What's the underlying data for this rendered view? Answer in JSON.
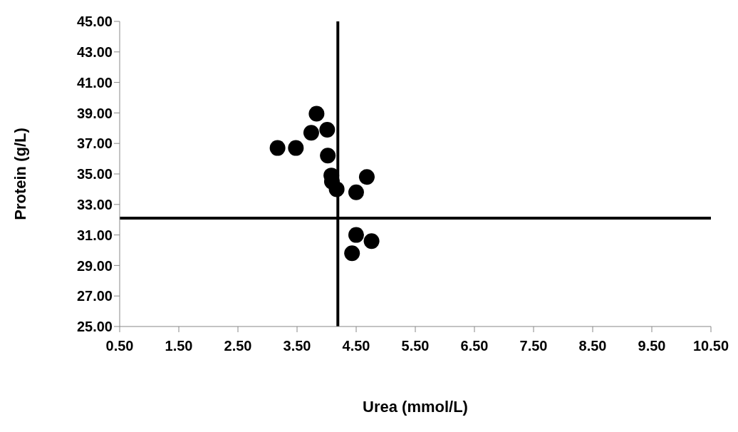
{
  "chart_data": {
    "type": "scatter",
    "xlabel": "Urea (mmol/L)",
    "ylabel": "Protein (g/L)",
    "x": [
      3.83,
      3.74,
      4.01,
      3.17,
      3.48,
      4.02,
      4.08,
      4.09,
      4.17,
      4.68,
      4.5,
      4.5,
      4.76,
      4.43
    ],
    "series": [
      {
        "color": "#000000",
        "values": [
          38.95,
          37.7,
          37.9,
          36.7,
          36.7,
          36.2,
          34.9,
          34.5,
          34.0,
          34.8,
          33.8,
          31.0,
          30.6,
          29.8
        ]
      }
    ],
    "xlim": [
      0.5,
      10.5
    ],
    "xticks": [
      {
        "value": 0.5,
        "label": "0.50"
      },
      {
        "value": 1.5,
        "label": "1.50"
      },
      {
        "value": 2.5,
        "label": "2.50"
      },
      {
        "value": 3.5,
        "label": "3.50"
      },
      {
        "value": 4.5,
        "label": "4.50"
      },
      {
        "value": 5.5,
        "label": "5.50"
      },
      {
        "value": 6.5,
        "label": "6.50"
      },
      {
        "value": 7.5,
        "label": "7.50"
      },
      {
        "value": 8.5,
        "label": "8.50"
      },
      {
        "value": 9.5,
        "label": "9.50"
      },
      {
        "value": 10.5,
        "label": "10.50"
      }
    ],
    "ylim": [
      25,
      45
    ],
    "yticks": [
      {
        "value": 25,
        "label": "25.00"
      },
      {
        "value": 27,
        "label": "27.00"
      },
      {
        "value": 29,
        "label": "29.00"
      },
      {
        "value": 31,
        "label": "31.00"
      },
      {
        "value": 33,
        "label": "33.00"
      },
      {
        "value": 35,
        "label": "35.00"
      },
      {
        "value": 37,
        "label": "37.00"
      },
      {
        "value": 39,
        "label": "39.00"
      },
      {
        "value": 41,
        "label": "41.00"
      },
      {
        "value": 43,
        "label": "43.00"
      },
      {
        "value": 45,
        "label": "45.00"
      }
    ],
    "ref_lines": [
      {
        "axis": "x",
        "value": 4.19,
        "color": "#000000"
      },
      {
        "axis": "y",
        "value": 32.1,
        "color": "#000000"
      }
    ],
    "marker": "circle"
  }
}
